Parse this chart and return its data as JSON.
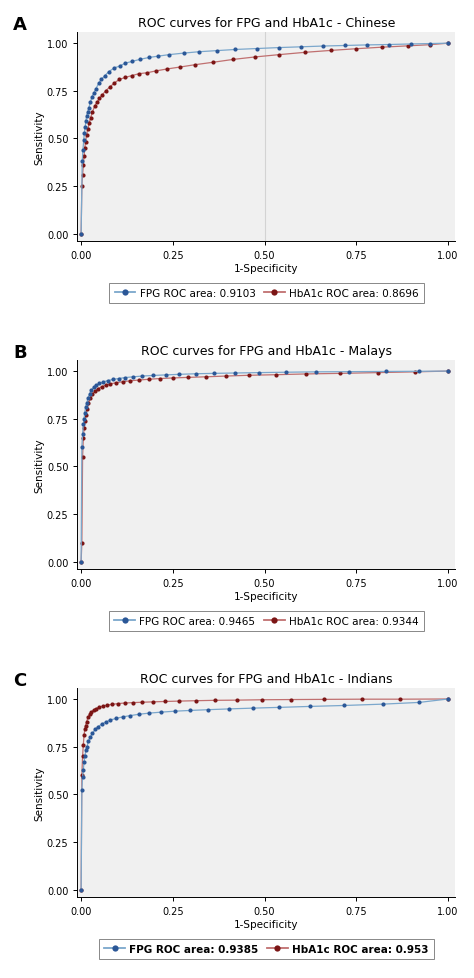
{
  "panels": [
    {
      "title": "ROC curves for FPG and HbA1c - Chinese",
      "label": "A",
      "fpg_auc": "0.9103",
      "hba1c_auc": "0.8696",
      "fpg_bold": false,
      "hba1c_bold": false,
      "ref_line_x": 0.5
    },
    {
      "title": "ROC curves for FPG and HbA1c - Malays",
      "label": "B",
      "fpg_auc": "0.9465",
      "hba1c_auc": "0.9344",
      "fpg_bold": false,
      "hba1c_bold": false,
      "ref_line_x": null
    },
    {
      "title": "ROC curves for FPG and HbA1c - Indians",
      "label": "C",
      "fpg_auc": "0.9385",
      "hba1c_auc": "0.953",
      "fpg_bold": true,
      "hba1c_bold": true,
      "ref_line_x": null
    }
  ],
  "fpg_dot_color": "#2b5797",
  "hba1c_dot_color": "#7b1515",
  "fpg_line_color": "#7ba7cc",
  "hba1c_line_color": "#c07070",
  "marker_size": 3.0,
  "line_width": 0.9,
  "xlabel": "1-Specificity",
  "ylabel": "Sensitivity",
  "xticks": [
    0.0,
    0.25,
    0.5,
    0.75,
    1.0
  ],
  "yticks": [
    0.0,
    0.25,
    0.5,
    0.75,
    1.0
  ],
  "bg_color": "#f0f0f0",
  "legend_fontsize": 7.5,
  "title_fontsize": 9,
  "axis_fontsize": 7.5,
  "tick_fontsize": 7
}
